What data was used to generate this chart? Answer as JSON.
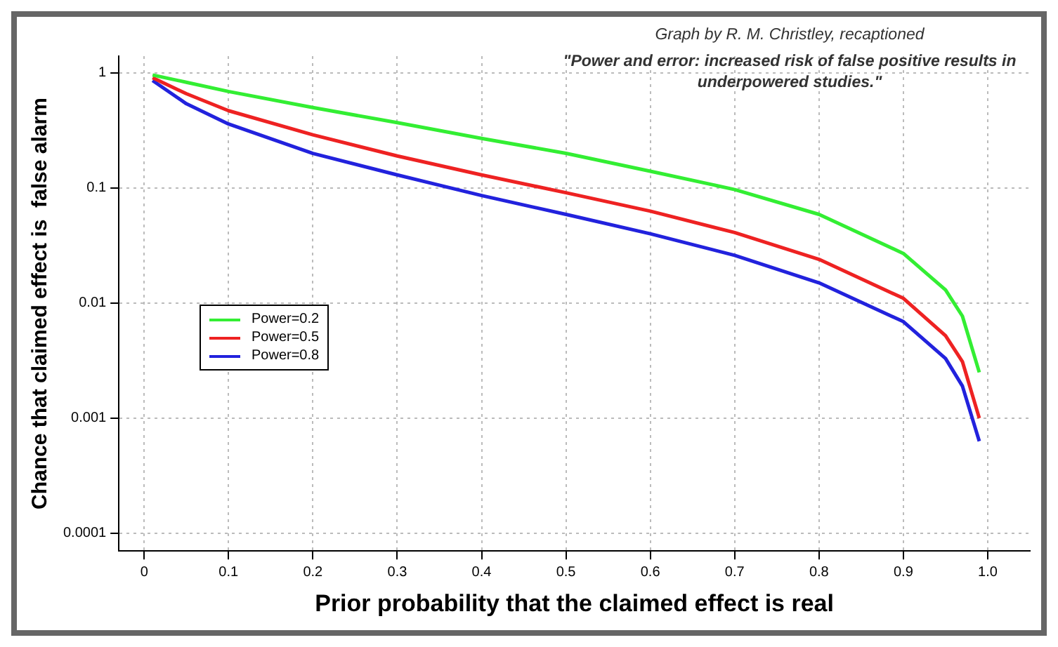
{
  "chart_data": {
    "type": "line",
    "xlabel": "Prior probability that the claimed effect is real",
    "ylabel": "Chance that claimed effect is  false alarm",
    "annotations": [
      "Graph by R. M. Christley, recaptioned",
      "\"Power and error: increased risk of false positive results in underpowered studies.\""
    ],
    "x": [
      0.01,
      0.05,
      0.1,
      0.2,
      0.3,
      0.4,
      0.5,
      0.6,
      0.7,
      0.8,
      0.9,
      0.95,
      0.97,
      0.99
    ],
    "series": [
      {
        "name": "Power=0.2",
        "color": "#33ee33",
        "values": [
          0.96,
          0.83,
          0.69,
          0.5,
          0.37,
          0.27,
          0.2,
          0.14,
          0.097,
          0.059,
          0.027,
          0.013,
          0.0077,
          0.0025
        ]
      },
      {
        "name": "Power=0.5",
        "color": "#ee2222",
        "values": [
          0.91,
          0.66,
          0.47,
          0.29,
          0.19,
          0.13,
          0.091,
          0.063,
          0.041,
          0.024,
          0.011,
          0.0052,
          0.0031,
          0.001
        ]
      },
      {
        "name": "Power=0.8",
        "color": "#2222dd",
        "values": [
          0.86,
          0.54,
          0.36,
          0.2,
          0.13,
          0.086,
          0.059,
          0.04,
          0.026,
          0.015,
          0.0069,
          0.0033,
          0.0019,
          0.00063
        ]
      }
    ],
    "log": "y",
    "xlim": [
      -0.03,
      1.05
    ],
    "ylim": [
      7e-05,
      1.4
    ],
    "xticks": [
      0,
      0.1,
      0.2,
      0.3,
      0.4,
      0.5,
      0.6,
      0.7,
      0.8,
      0.9,
      {
        "value": 1,
        "label": "1.0"
      }
    ],
    "yticks": [
      1,
      0.1,
      0.01,
      0.001,
      0.0001
    ],
    "grid": true,
    "legend": "left",
    "marker": "none",
    "line_style": "solid"
  }
}
